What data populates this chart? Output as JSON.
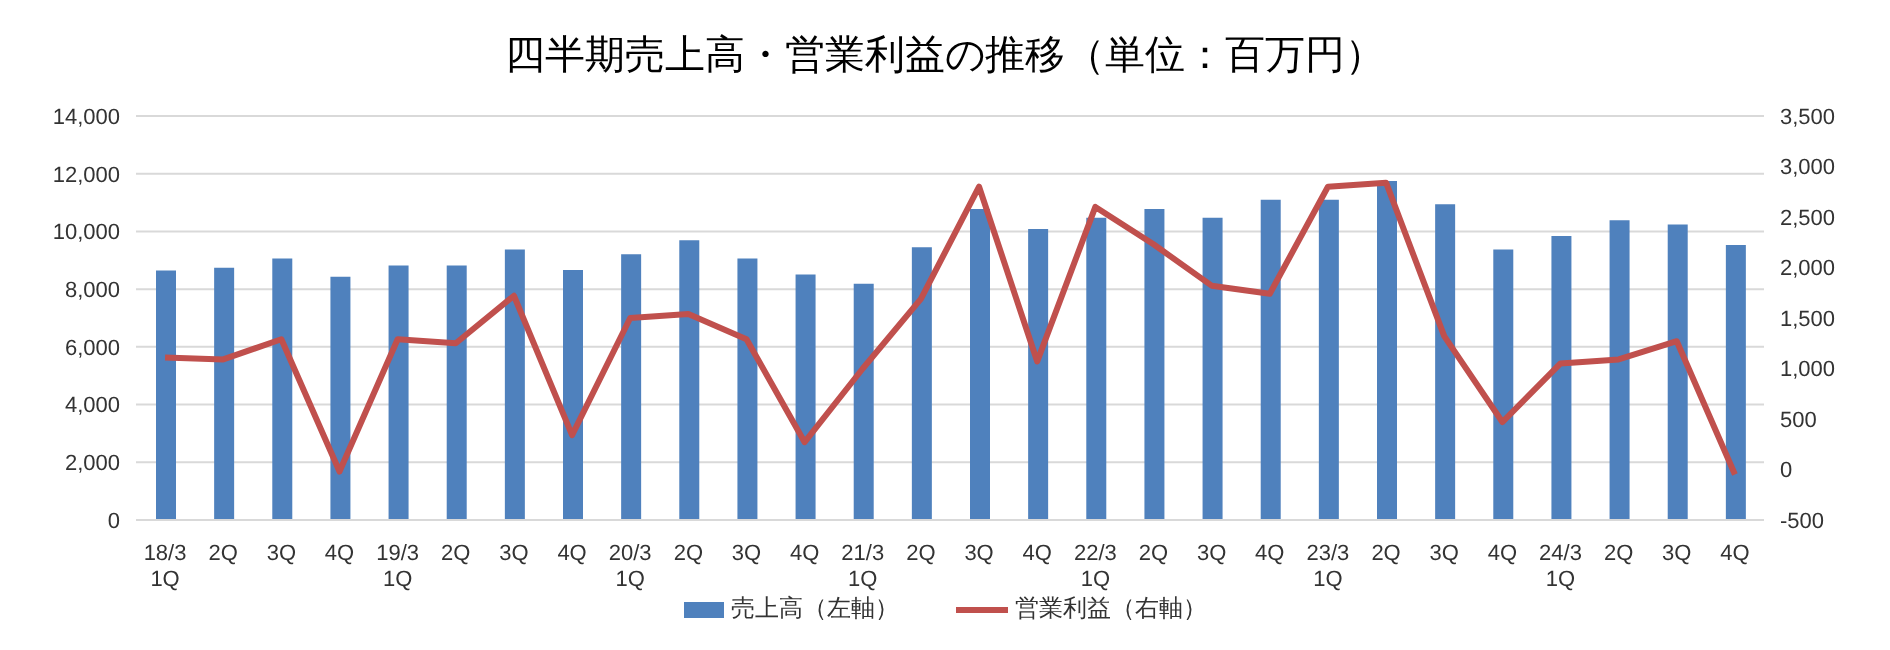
{
  "chart_data": {
    "type": "bar",
    "title": "四半期売上高・営業利益の推移（単位：百万円）",
    "categories": [
      "18/3\n1Q",
      "2Q",
      "3Q",
      "4Q",
      "19/3\n1Q",
      "2Q",
      "3Q",
      "4Q",
      "20/3\n1Q",
      "2Q",
      "3Q",
      "4Q",
      "21/3\n1Q",
      "2Q",
      "3Q",
      "4Q",
      "22/3\n1Q",
      "2Q",
      "3Q",
      "4Q",
      "23/3\n1Q",
      "2Q",
      "3Q",
      "4Q",
      "24/3\n1Q",
      "2Q",
      "3Q",
      "4Q"
    ],
    "series": [
      {
        "name": "売上高（左軸）",
        "color": "#4f81bd",
        "values": [
          8650,
          8740,
          9060,
          8430,
          8820,
          8820,
          9370,
          8660,
          9210,
          9690,
          9060,
          8510,
          8190,
          9450,
          10780,
          10080,
          10470,
          10780,
          10470,
          11100,
          11100,
          11750,
          10940,
          9370,
          9840,
          10390,
          10240,
          9530
        ]
      },
      {
        "name": "営業利益（右軸）",
        "type": "line",
        "axis": "y2",
        "color": "#c0504d",
        "values": [
          1110,
          1090,
          1290,
          -20,
          1290,
          1250,
          1720,
          340,
          1500,
          1540,
          1290,
          270,
          1000,
          1690,
          2800,
          1070,
          2600,
          2230,
          1820,
          1740,
          2800,
          2840,
          1320,
          470,
          1050,
          1090,
          1270,
          -50
        ]
      }
    ],
    "ylim": [
      0,
      14000
    ],
    "yticks": [
      0,
      {
        "value": 2000,
        "label": "2,000"
      },
      {
        "value": 4000,
        "label": "4,000"
      },
      {
        "value": 6000,
        "label": "6,000"
      },
      {
        "value": 8000,
        "label": "8,000"
      },
      {
        "value": 10000,
        "label": "10,000"
      },
      {
        "value": 12000,
        "label": "12,000"
      },
      {
        "value": 14000,
        "label": "14,000"
      }
    ],
    "y2lim": [
      -500,
      3500
    ],
    "y2ticks": [
      -500,
      0,
      500,
      {
        "value": 1000,
        "label": "1,000"
      },
      {
        "value": 1500,
        "label": "1,500"
      },
      {
        "value": 2000,
        "label": "2,000"
      },
      {
        "value": 2500,
        "label": "2,500"
      },
      {
        "value": 3000,
        "label": "3,000"
      },
      {
        "value": 3500,
        "label": "3,500"
      }
    ],
    "grid": "y",
    "legend": "bottom",
    "marker": "none",
    "line_style": "solid"
  }
}
